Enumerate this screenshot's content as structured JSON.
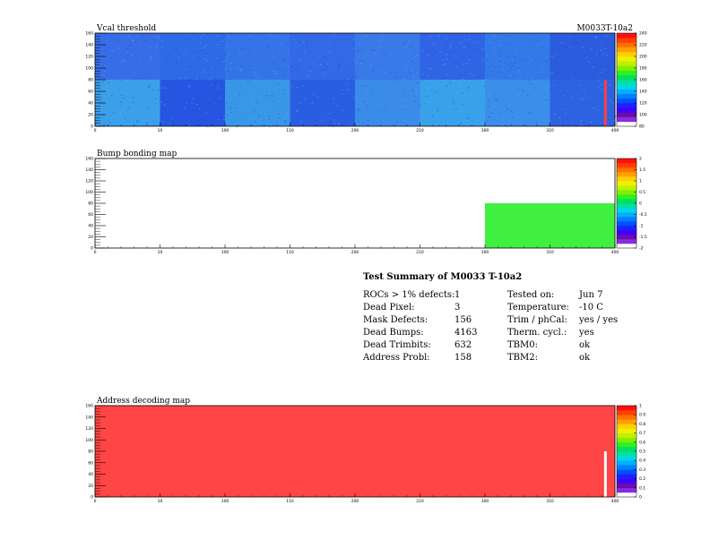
{
  "panels": [
    {
      "title": "Vcal threshold",
      "module_label": "M0033T-10a2",
      "type": "heatmap",
      "x_ticks": [
        "0",
        "10",
        "100",
        "110",
        "200",
        "210",
        "300",
        "310",
        "400"
      ],
      "y_ticks": [
        "0",
        "20",
        "40",
        "60",
        "80",
        "100",
        "120",
        "140",
        "160"
      ],
      "palette_ticks": [
        "80",
        "100",
        "120",
        "140",
        "160",
        "180",
        "200",
        "220",
        "240"
      ]
    },
    {
      "title": "Bump bonding map",
      "type": "heatmap",
      "x_ticks": [
        "0",
        "10",
        "100",
        "110",
        "200",
        "210",
        "300",
        "310",
        "400"
      ],
      "y_ticks": [
        "0",
        "20",
        "40",
        "60",
        "80",
        "100",
        "120",
        "140",
        "160"
      ],
      "palette_ticks": [
        "-2",
        "-1.5",
        "-1",
        "-0.5",
        "0",
        "0.5",
        "1",
        "1.5",
        "2"
      ]
    },
    {
      "title": "Address decoding map",
      "type": "heatmap",
      "x_ticks": [
        "0",
        "10",
        "100",
        "110",
        "200",
        "210",
        "300",
        "310",
        "400"
      ],
      "y_ticks": [
        "0",
        "20",
        "40",
        "60",
        "80",
        "100",
        "120",
        "140",
        "160"
      ],
      "palette_ticks": [
        "0",
        "0.1",
        "0.2",
        "0.3",
        "0.4",
        "0.5",
        "0.6",
        "0.7",
        "0.8",
        "0.9",
        "1"
      ]
    }
  ],
  "chart_data": [
    {
      "type": "heatmap",
      "title": "Vcal threshold",
      "xlim": [
        0,
        416
      ],
      "ylim": [
        0,
        160
      ],
      "zlim": [
        80,
        240
      ],
      "description_values": {
        "upper_half_typical": 120,
        "lower_half_typical": 120,
        "hot_column": {
          "x": 408,
          "value": 240
        }
      }
    },
    {
      "type": "heatmap",
      "title": "Bump bonding map",
      "xlim": [
        0,
        416
      ],
      "ylim": [
        0,
        160
      ],
      "zlim": [
        -2,
        2
      ],
      "filled_region": {
        "x": [
          312,
          416
        ],
        "y": [
          0,
          80
        ],
        "value": 0
      }
    },
    {
      "type": "heatmap",
      "title": "Address decoding map",
      "xlim": [
        0,
        416
      ],
      "ylim": [
        0,
        160
      ],
      "zlim": [
        0,
        1
      ],
      "fill_value": 1,
      "dead_column": {
        "x": 408,
        "y": [
          0,
          80
        ],
        "value": 0
      }
    }
  ],
  "summary": {
    "title": "Test Summary of M0033     T-10a2",
    "left": [
      {
        "label": "ROCs > 1% defects:",
        "value": "1"
      },
      {
        "label": "Dead Pixel:",
        "value": "3"
      },
      {
        "label": "Mask Defects:",
        "value": "156"
      },
      {
        "label": "Dead Bumps:",
        "value": "4163"
      },
      {
        "label": "Dead Trimbits:",
        "value": "632"
      },
      {
        "label": "Address Probl:",
        "value": "158"
      }
    ],
    "right": [
      {
        "label": "Tested on:",
        "value": "Jun 7"
      },
      {
        "label": "Temperature:",
        "value": "-10 C"
      },
      {
        "label": "Trim / phCal:",
        "value": "yes / yes"
      },
      {
        "label": "Therm. cycl.:",
        "value": "yes"
      },
      {
        "label": "TBM0:",
        "value": "ok"
      },
      {
        "label": "TBM2:",
        "value": "ok"
      }
    ]
  }
}
